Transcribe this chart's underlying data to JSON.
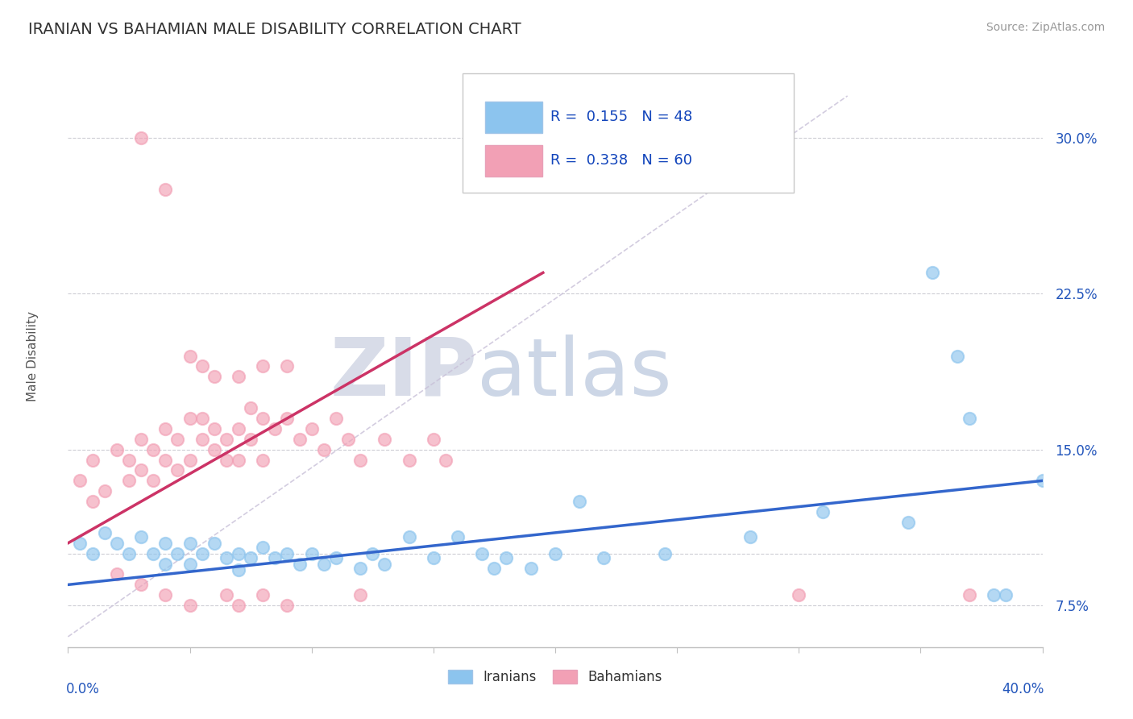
{
  "title": "IRANIAN VS BAHAMIAN MALE DISABILITY CORRELATION CHART",
  "source": "Source: ZipAtlas.com",
  "ylabel": "Male Disability",
  "x_range": [
    0.0,
    0.4
  ],
  "y_range": [
    0.055,
    0.335
  ],
  "r_iranian": 0.155,
  "n_iranian": 48,
  "r_bahamian": 0.338,
  "n_bahamian": 60,
  "color_iranian": "#8CC4EE",
  "color_bahamian": "#F2A0B5",
  "color_trend_iranian": "#3366CC",
  "color_trend_bahamian": "#CC3366",
  "color_diagonal": "#C8C0D8",
  "y_tick_vals": [
    0.075,
    0.1,
    0.15,
    0.225,
    0.3
  ],
  "y_tick_labels": [
    "7.5%",
    "",
    "15.0%",
    "22.5%",
    "30.0%"
  ],
  "trend_iranian": [
    0.0,
    0.085,
    0.4,
    0.135
  ],
  "trend_bahamian": [
    0.0,
    0.105,
    0.195,
    0.235
  ],
  "iranians_scatter": [
    [
      0.005,
      0.105
    ],
    [
      0.01,
      0.1
    ],
    [
      0.015,
      0.11
    ],
    [
      0.02,
      0.105
    ],
    [
      0.025,
      0.1
    ],
    [
      0.03,
      0.108
    ],
    [
      0.035,
      0.1
    ],
    [
      0.04,
      0.105
    ],
    [
      0.04,
      0.095
    ],
    [
      0.045,
      0.1
    ],
    [
      0.05,
      0.105
    ],
    [
      0.05,
      0.095
    ],
    [
      0.055,
      0.1
    ],
    [
      0.06,
      0.105
    ],
    [
      0.065,
      0.098
    ],
    [
      0.07,
      0.1
    ],
    [
      0.07,
      0.092
    ],
    [
      0.075,
      0.098
    ],
    [
      0.08,
      0.103
    ],
    [
      0.085,
      0.098
    ],
    [
      0.09,
      0.1
    ],
    [
      0.095,
      0.095
    ],
    [
      0.1,
      0.1
    ],
    [
      0.105,
      0.095
    ],
    [
      0.11,
      0.098
    ],
    [
      0.12,
      0.093
    ],
    [
      0.125,
      0.1
    ],
    [
      0.13,
      0.095
    ],
    [
      0.14,
      0.108
    ],
    [
      0.15,
      0.098
    ],
    [
      0.16,
      0.108
    ],
    [
      0.17,
      0.1
    ],
    [
      0.175,
      0.093
    ],
    [
      0.18,
      0.098
    ],
    [
      0.19,
      0.093
    ],
    [
      0.2,
      0.1
    ],
    [
      0.21,
      0.125
    ],
    [
      0.22,
      0.098
    ],
    [
      0.245,
      0.1
    ],
    [
      0.28,
      0.108
    ],
    [
      0.31,
      0.12
    ],
    [
      0.345,
      0.115
    ],
    [
      0.355,
      0.235
    ],
    [
      0.365,
      0.195
    ],
    [
      0.37,
      0.165
    ],
    [
      0.38,
      0.08
    ],
    [
      0.385,
      0.08
    ],
    [
      0.4,
      0.135
    ]
  ],
  "bahamians_scatter": [
    [
      0.005,
      0.135
    ],
    [
      0.01,
      0.145
    ],
    [
      0.015,
      0.13
    ],
    [
      0.02,
      0.15
    ],
    [
      0.025,
      0.145
    ],
    [
      0.025,
      0.135
    ],
    [
      0.03,
      0.155
    ],
    [
      0.03,
      0.14
    ],
    [
      0.035,
      0.15
    ],
    [
      0.035,
      0.135
    ],
    [
      0.04,
      0.16
    ],
    [
      0.04,
      0.145
    ],
    [
      0.045,
      0.155
    ],
    [
      0.045,
      0.14
    ],
    [
      0.05,
      0.165
    ],
    [
      0.05,
      0.145
    ],
    [
      0.055,
      0.155
    ],
    [
      0.055,
      0.165
    ],
    [
      0.06,
      0.15
    ],
    [
      0.06,
      0.16
    ],
    [
      0.065,
      0.155
    ],
    [
      0.065,
      0.145
    ],
    [
      0.07,
      0.16
    ],
    [
      0.07,
      0.145
    ],
    [
      0.075,
      0.17
    ],
    [
      0.075,
      0.155
    ],
    [
      0.08,
      0.165
    ],
    [
      0.08,
      0.145
    ],
    [
      0.085,
      0.16
    ],
    [
      0.09,
      0.165
    ],
    [
      0.095,
      0.155
    ],
    [
      0.1,
      0.16
    ],
    [
      0.105,
      0.15
    ],
    [
      0.11,
      0.165
    ],
    [
      0.115,
      0.155
    ],
    [
      0.12,
      0.145
    ],
    [
      0.13,
      0.155
    ],
    [
      0.14,
      0.145
    ],
    [
      0.15,
      0.155
    ],
    [
      0.155,
      0.145
    ],
    [
      0.03,
      0.3
    ],
    [
      0.04,
      0.275
    ],
    [
      0.05,
      0.195
    ],
    [
      0.055,
      0.19
    ],
    [
      0.06,
      0.185
    ],
    [
      0.07,
      0.185
    ],
    [
      0.08,
      0.19
    ],
    [
      0.09,
      0.19
    ],
    [
      0.01,
      0.125
    ],
    [
      0.02,
      0.09
    ],
    [
      0.03,
      0.085
    ],
    [
      0.04,
      0.08
    ],
    [
      0.05,
      0.075
    ],
    [
      0.065,
      0.08
    ],
    [
      0.07,
      0.075
    ],
    [
      0.08,
      0.08
    ],
    [
      0.09,
      0.075
    ],
    [
      0.12,
      0.08
    ],
    [
      0.3,
      0.08
    ],
    [
      0.37,
      0.08
    ]
  ]
}
